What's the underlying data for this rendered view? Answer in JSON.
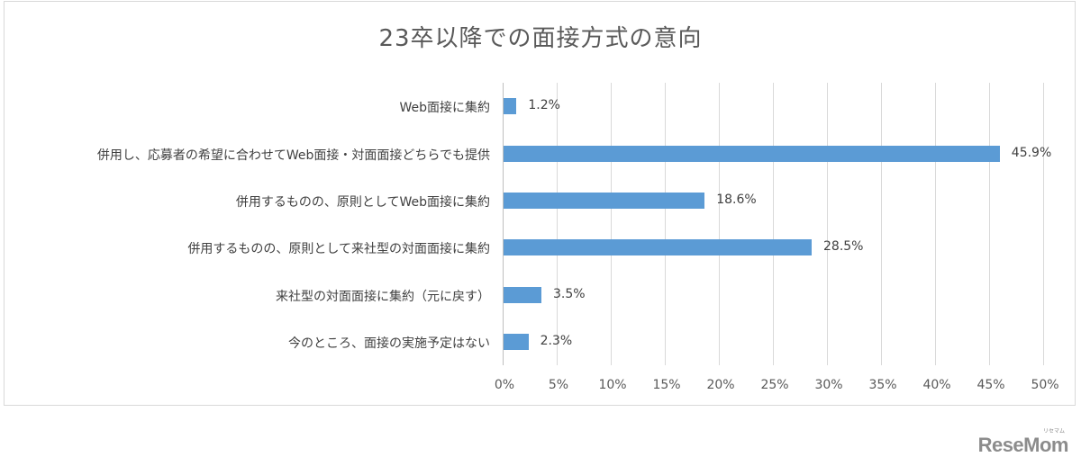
{
  "chart_data": {
    "type": "bar",
    "orientation": "horizontal",
    "title": "23卒以降での面接方式の意向",
    "xlabel": "",
    "ylabel": "",
    "xlim": [
      0,
      50
    ],
    "grid": true,
    "legend": null,
    "categories": [
      "Web面接に集約",
      "併用し、応募者の希望に合わせてWeb面接・対面面接どちらでも提供",
      "併用するものの、原則としてWeb面接に集約",
      "併用するものの、原則として来社型の対面面接に集約",
      "来社型の対面面接に集約（元に戻す）",
      "今のところ、面接の実施予定はない"
    ],
    "values": [
      1.2,
      45.9,
      18.6,
      28.5,
      3.5,
      2.3
    ],
    "value_labels": [
      "1.2%",
      "45.9%",
      "18.6%",
      "28.5%",
      "3.5%",
      "2.3%"
    ],
    "x_ticks": [
      "0%",
      "5%",
      "10%",
      "15%",
      "20%",
      "25%",
      "30%",
      "35%",
      "40%",
      "45%",
      "50%"
    ],
    "bar_color": "#5b9bd5"
  },
  "watermark": {
    "logo": "ReseMom",
    "kana": "リセマム"
  }
}
